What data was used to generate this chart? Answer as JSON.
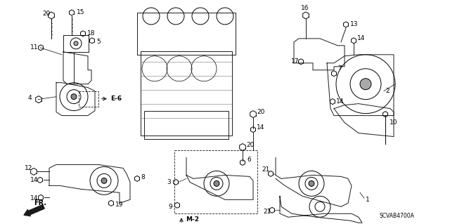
{
  "bg_color": "#ffffff",
  "line_color": "#1a1a1a",
  "fig_width": 6.4,
  "fig_height": 3.19,
  "dpi": 100,
  "part_code": "SCVAB4700A",
  "font_size": 6.5
}
